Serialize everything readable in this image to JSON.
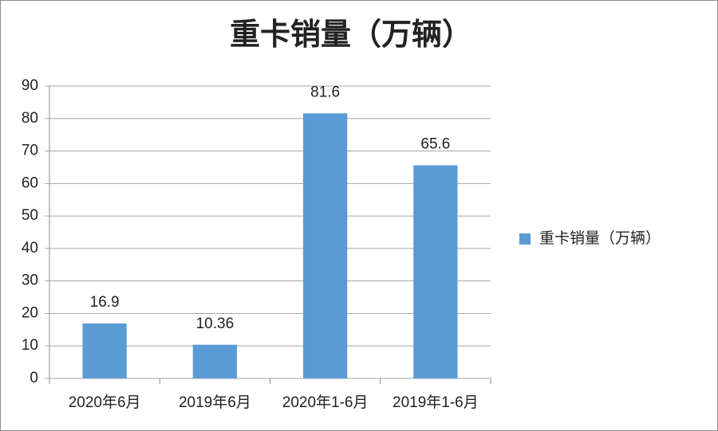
{
  "chart_data": {
    "type": "bar",
    "title": "重卡销量（万辆）",
    "categories": [
      "2020年6月",
      "2019年6月",
      "2020年1-6月",
      "2019年1-6月"
    ],
    "series": [
      {
        "name": "重卡销量（万辆）",
        "color": "#5b9bd5",
        "values": [
          16.9,
          10.36,
          81.6,
          65.6
        ]
      }
    ],
    "ylim": [
      0,
      90
    ],
    "yticks": [
      0,
      10,
      20,
      30,
      40,
      50,
      60,
      70,
      80,
      90
    ],
    "grid": true,
    "legend": "right"
  }
}
